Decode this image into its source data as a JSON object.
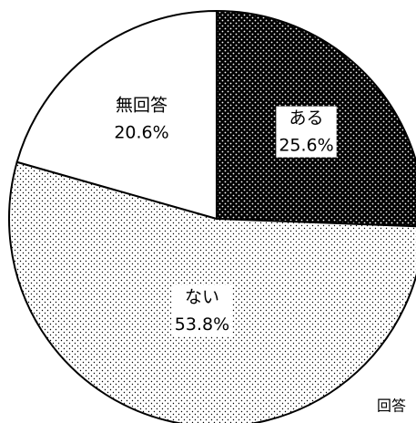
{
  "chart_data": {
    "type": "pie",
    "categories": [
      "ある",
      "ない",
      "無回答"
    ],
    "values": [
      25.6,
      53.8,
      20.6
    ],
    "value_labels": [
      "25.6%",
      "53.8%",
      "20.6%"
    ],
    "colors": [
      "#000000",
      "#ffffff",
      "#ffffff"
    ],
    "dot_colors": [
      "#ffffff",
      "#000000",
      null
    ],
    "note": "回答"
  }
}
